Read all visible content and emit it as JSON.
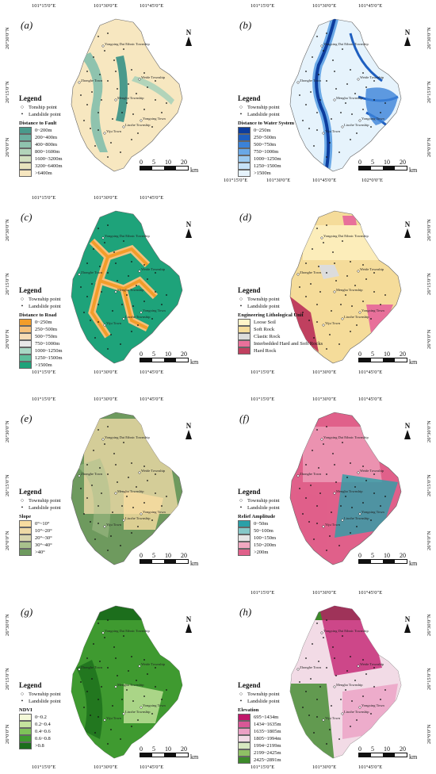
{
  "panels": [
    {
      "label": "(a)",
      "top_coords": [
        "101°15′0″E",
        "101°30′0″E",
        "101°45′0″E"
      ],
      "bottom_coords": [],
      "left_coords": [
        "26°30′0″N",
        "26°15′0″N",
        "26°0′0″N"
      ],
      "right_coords": [],
      "legend": {
        "title": "Legend",
        "township": "Tonship point",
        "landslide": "Landslide point",
        "factor": "Distance to Fault",
        "classes": [
          {
            "label": "0~200m",
            "color": "#4a9a8c"
          },
          {
            "label": "200~400m",
            "color": "#6bb0a0"
          },
          {
            "label": "400~800m",
            "color": "#8fc3ae"
          },
          {
            "label": "800~1600m",
            "color": "#b2d4ba"
          },
          {
            "label": "1600~3200m",
            "color": "#d2e0bf"
          },
          {
            "label": "3200~6400m",
            "color": "#e8e4bd"
          },
          {
            "label": ">6400m",
            "color": "#f7e7c0"
          }
        ]
      },
      "towns": [
        "Yongxing Dai Ethnic Township",
        "Zhonghe Town",
        "Weide Township",
        "Mengba Township",
        "Yongxing Town",
        "Liuxhe Township",
        "Yiju Town"
      ],
      "scale": {
        "ticks": [
          "0",
          "5",
          "10",
          "20"
        ],
        "unit": "km"
      }
    },
    {
      "label": "(b)",
      "top_coords": [
        "101°15′0″E",
        "101°30′0″E",
        "101°45′0″E"
      ],
      "bottom_coords": [
        "101°15′0″E",
        "101°30′0″E",
        "101°45′0″E",
        "102°0′0″E"
      ],
      "left_coords": [],
      "right_coords": [
        "26°30′0″N",
        "26°15′0″N",
        "26°0′0″N"
      ],
      "legend": {
        "title": "Legend",
        "township": "Township point",
        "landslide": "Landslide point",
        "factor": "Distance to Water System",
        "classes": [
          {
            "label": "0~250m",
            "color": "#0d3d9e"
          },
          {
            "label": "250~500m",
            "color": "#1f5fc0"
          },
          {
            "label": "500~750m",
            "color": "#3b82d8"
          },
          {
            "label": "750~1000m",
            "color": "#6aa8e6"
          },
          {
            "label": "1000~1250m",
            "color": "#9ccaf0"
          },
          {
            "label": "1250~1500m",
            "color": "#c7e2f7"
          },
          {
            "label": ">1500m",
            "color": "#e6f3fc"
          }
        ]
      },
      "towns": [
        "Yongxing Dai Ethnic Township",
        "Zhonghe Town",
        "Weide Township",
        "Mengba Township",
        "Yongxing Town",
        "Liuxhe Township",
        "Yiju Town"
      ],
      "scale": {
        "ticks": [
          "0",
          "5",
          "10",
          "20"
        ],
        "unit": "km"
      }
    },
    {
      "label": "(c)",
      "top_coords": [
        "101°15′0″E",
        "101°30′0″E",
        "101°45′0″E"
      ],
      "bottom_coords": [
        "101°15′0″E",
        "101°30′0″E",
        "101°45′0″E"
      ],
      "left_coords": [
        "26°30′0″N",
        "26°15′0″N",
        "26°0′0″N"
      ],
      "right_coords": [],
      "legend": {
        "title": "Legend",
        "township": "Township point",
        "landslide": "Landslide point",
        "factor": "Distance to Road",
        "classes": [
          {
            "label": "0~250m",
            "color": "#f29d2a"
          },
          {
            "label": "250~500m",
            "color": "#f5c07a"
          },
          {
            "label": "500~750m",
            "color": "#f7dcb5"
          },
          {
            "label": "750~1000m",
            "color": "#e8e8e8"
          },
          {
            "label": "1000~1250m",
            "color": "#a9d8c4"
          },
          {
            "label": "1250~1500m",
            "color": "#5cbf9a"
          },
          {
            "label": ">1500m",
            "color": "#1ea37a"
          }
        ]
      },
      "towns": [
        "Yongxing Dai Ethnic Township",
        "Zhonghe Town",
        "Weide Township",
        "Mengba Township",
        "Yongxing Town",
        "Liuxhe Township",
        "Yiju Town"
      ],
      "scale": {
        "ticks": [
          "0",
          "5",
          "10",
          "20"
        ],
        "unit": "km"
      }
    },
    {
      "label": "(d)",
      "top_coords": [],
      "bottom_coords": [
        "101°15′0″E",
        "101°30′0″E",
        "101°45′0″E"
      ],
      "left_coords": [],
      "right_coords": [
        "26°30′0″N",
        "26°15′0″N",
        "26°0′0″N"
      ],
      "legend": {
        "title": "Legend",
        "township": "Township point",
        "landslide": "Landslide point",
        "factor": "Engineering Lithological Unit",
        "classes": [
          {
            "label": "Loose Soil",
            "color": "#fff4c8"
          },
          {
            "label": "Soft Rock",
            "color": "#f5dc9a"
          },
          {
            "label": "Clastic Rock",
            "color": "#dcdcdc"
          },
          {
            "label": "Interbedded Hard and Soft Rocks",
            "color": "#e8709a"
          },
          {
            "label": "Hard Rock",
            "color": "#c0405f"
          }
        ]
      },
      "towns": [
        "Yongxing Dai Ethnic Township",
        "Zhonghe Town",
        "Weide Township",
        "Mengba Township",
        "Yongxing Town",
        "Liuxhe Township",
        "Yiju Town"
      ],
      "scale": {
        "ticks": [
          "0",
          "5",
          "10",
          "20"
        ],
        "unit": "km"
      }
    },
    {
      "label": "(e)",
      "top_coords": [
        "101°15′0″E",
        "101°30′0″E",
        "101°45′0″E"
      ],
      "bottom_coords": [],
      "left_coords": [
        "26°30′0″N",
        "26°15′0″N",
        "26°0′0″N"
      ],
      "right_coords": [],
      "legend": {
        "title": "Legend",
        "township": "Township point",
        "landslide": "Landslide point",
        "factor": "Slope",
        "classes": [
          {
            "label": "0°~10°",
            "color": "#f7dca0"
          },
          {
            "label": "10°~20°",
            "color": "#eed9a6"
          },
          {
            "label": "20°~30°",
            "color": "#d9d6ae"
          },
          {
            "label": "30°~40°",
            "color": "#a8c08c"
          },
          {
            "label": ">40°",
            "color": "#6e9a5e"
          }
        ]
      },
      "towns": [
        "Yongxing Dai Ethnic Township",
        "Zhonghe Town",
        "Weide Township",
        "Mengba Township",
        "Yongxing Town",
        "Liuxhe Township",
        "Yiju Town"
      ],
      "scale": {
        "ticks": [
          "0",
          "5",
          "10",
          "20"
        ],
        "unit": "km"
      }
    },
    {
      "label": "(f)",
      "top_coords": [
        "101°15′0″E",
        "101°30′0″E",
        "101°45′0″E"
      ],
      "bottom_coords": [],
      "left_coords": [],
      "right_coords": [
        "26°30′0″N",
        "26°15′0″N",
        "26°0′0″N"
      ],
      "legend": {
        "title": "Legend",
        "township": "Township point",
        "landslide": "Landslide point",
        "factor": "Relief Amplitude",
        "classes": [
          {
            "label": "0~50m",
            "color": "#2aa0a8"
          },
          {
            "label": "50~100m",
            "color": "#86c8c8"
          },
          {
            "label": "100~150m",
            "color": "#e6e6e6"
          },
          {
            "label": "150~200m",
            "color": "#f0a8c0"
          },
          {
            "label": ">200m",
            "color": "#e0608a"
          }
        ]
      },
      "towns": [
        "Yongxing Dai Ethnic Township",
        "Zhonghe Town",
        "Weide Township",
        "Mengba Township",
        "Yongxing Town",
        "Liuxhe Township",
        "Yiju Town"
      ],
      "scale": {
        "ticks": [
          "0",
          "5",
          "10",
          "20"
        ],
        "unit": "km"
      }
    },
    {
      "label": "(g)",
      "top_coords": [],
      "bottom_coords": [
        "101°15′0″E",
        "101°30′0″E",
        "101°45′0″E"
      ],
      "left_coords": [
        "26°30′0″N",
        "26°15′0″N",
        "26°0′0″N"
      ],
      "right_coords": [],
      "legend": {
        "title": "Legend",
        "township": "Township point",
        "landslide": "Landslide point",
        "factor": "NDVI",
        "classes": [
          {
            "label": "0~0.2",
            "color": "#f4f9d8"
          },
          {
            "label": "0.2~0.4",
            "color": "#c5e39e"
          },
          {
            "label": "0.4~0.6",
            "color": "#7fc25a"
          },
          {
            "label": "0.6~0.8",
            "color": "#3f9a30"
          },
          {
            "label": ">0.8",
            "color": "#1c6e1c"
          }
        ]
      },
      "towns": [
        "Yongxing Dai Ethnic Township",
        "Zhonghe Town",
        "Weide Township",
        "Mengba Township",
        "Yongxing Town",
        "Liuxhe Township",
        "Yiju Town"
      ],
      "scale": {
        "ticks": [
          "0",
          "5",
          "10",
          "20"
        ],
        "unit": "km"
      }
    },
    {
      "label": "(h)",
      "top_coords": [
        "101°15′0″E",
        "101°30′0″E",
        "101°45′0″E"
      ],
      "bottom_coords": [
        "101°15′0″E",
        "101°30′0″E",
        "101°45′0″E"
      ],
      "left_coords": [],
      "right_coords": [
        "26°30′0″N",
        "26°15′0″N",
        "26°0′0″N"
      ],
      "legend": {
        "title": "Legend",
        "township": "Township point",
        "landslide": "Landslide point",
        "factor": "Elevation",
        "classes": [
          {
            "label": "695~1434m",
            "color": "#c0166a"
          },
          {
            "label": "1434~1635m",
            "color": "#d85896"
          },
          {
            "label": "1635~1805m",
            "color": "#eba0c4"
          },
          {
            "label": "1805~1994m",
            "color": "#f2dbe6"
          },
          {
            "label": "1994~2199m",
            "color": "#d8e8c0"
          },
          {
            "label": "2199~2425m",
            "color": "#8fc065"
          },
          {
            "label": "2425~2891m",
            "color": "#3d8a2a"
          }
        ]
      },
      "towns": [
        "Yongxing Dai Ethnic Township",
        "Zhonghe Town",
        "Weide Township",
        "Mengba Township",
        "Yongxing Town",
        "Liuxhe Township",
        "Yiju Town"
      ],
      "scale": {
        "ticks": [
          "0",
          "5",
          "10",
          "20"
        ],
        "unit": "km"
      }
    }
  ]
}
